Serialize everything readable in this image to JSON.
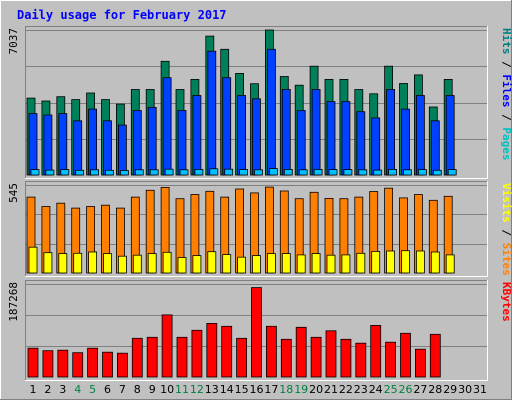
{
  "chart_data": [
    {
      "type": "bar",
      "title": "Daily usage for February 2017",
      "ylabel_parts": [
        "Pages",
        "Files",
        "Hits"
      ],
      "ylabel_colors": [
        "#00c0c0",
        "#0000ff",
        "#008080"
      ],
      "ymax_label": "7037",
      "ylim": [
        0,
        7037
      ],
      "categories": [
        "1",
        "2",
        "3",
        "4",
        "5",
        "6",
        "7",
        "8",
        "9",
        "10",
        "11",
        "12",
        "13",
        "14",
        "15",
        "16",
        "17",
        "18",
        "19",
        "20",
        "21",
        "22",
        "23",
        "24",
        "25",
        "26",
        "27",
        "28",
        "29",
        "30",
        "31"
      ],
      "series": [
        {
          "name": "Hits",
          "color": "#00805a",
          "values": [
            3730,
            3589,
            3800,
            3660,
            3980,
            3660,
            3440,
            4150,
            4150,
            5520,
            4150,
            4640,
            6740,
            6100,
            4930,
            4430,
            7037,
            4780,
            4360,
            5280,
            4640,
            4640,
            4150,
            3940,
            5280,
            4440,
            4860,
            3300,
            4640,
            null,
            null
          ]
        },
        {
          "name": "Files",
          "color": "#0040ff",
          "values": [
            2980,
            2910,
            2980,
            2630,
            3200,
            2630,
            2420,
            3130,
            3280,
            4720,
            3130,
            3860,
            6010,
            4720,
            3860,
            3700,
            6100,
            4150,
            3130,
            4150,
            3560,
            3560,
            3070,
            2770,
            4150,
            3200,
            3860,
            2630,
            3860,
            null,
            null
          ]
        },
        {
          "name": "Pages",
          "color": "#00c0ff",
          "values": [
            260,
            240,
            260,
            230,
            250,
            230,
            220,
            250,
            250,
            280,
            250,
            270,
            300,
            280,
            260,
            250,
            310,
            270,
            250,
            270,
            260,
            260,
            250,
            240,
            270,
            250,
            260,
            230,
            260,
            null,
            null
          ]
        }
      ]
    },
    {
      "type": "bar",
      "ylabel_parts": [
        "Sites",
        "Visits"
      ],
      "ylabel_colors": [
        "#ff8000",
        "#ffff00"
      ],
      "ymax_label": "545",
      "ylim": [
        0,
        545
      ],
      "categories": [
        "1",
        "2",
        "3",
        "4",
        "5",
        "6",
        "7",
        "8",
        "9",
        "10",
        "11",
        "12",
        "13",
        "14",
        "15",
        "16",
        "17",
        "18",
        "19",
        "20",
        "21",
        "22",
        "23",
        "24",
        "25",
        "26",
        "27",
        "28",
        "29",
        "30",
        "31"
      ],
      "series": [
        {
          "name": "Sites",
          "color": "#ff8000",
          "values": [
            470,
            412,
            432,
            402,
            412,
            420,
            402,
            470,
            512,
            530,
            460,
            486,
            506,
            470,
            520,
            496,
            532,
            508,
            460,
            500,
            462,
            460,
            470,
            505,
            525,
            465,
            486,
            450,
            475,
            null,
            null
          ]
        },
        {
          "name": "Visits",
          "color": "#ffff00",
          "values": [
            160,
            126,
            120,
            122,
            130,
            120,
            104,
            110,
            120,
            128,
            96,
            108,
            132,
            114,
            98,
            108,
            120,
            120,
            112,
            120,
            110,
            112,
            122,
            134,
            136,
            138,
            136,
            130,
            112,
            null,
            null
          ]
        }
      ]
    },
    {
      "type": "bar",
      "ylabel_parts": [
        "KBytes"
      ],
      "ylabel_colors": [
        "#ff0000"
      ],
      "ymax_label": "187268",
      "ylim": [
        0,
        187268
      ],
      "categories": [
        "1",
        "2",
        "3",
        "4",
        "5",
        "6",
        "7",
        "8",
        "9",
        "10",
        "11",
        "12",
        "13",
        "14",
        "15",
        "16",
        "17",
        "18",
        "19",
        "20",
        "21",
        "22",
        "23",
        "24",
        "25",
        "26",
        "27",
        "28",
        "29",
        "30",
        "31"
      ],
      "series": [
        {
          "name": "KBytes",
          "color": "#ff0000",
          "values": [
            58000,
            53000,
            54000,
            49000,
            58000,
            50000,
            48000,
            78000,
            80000,
            125000,
            80000,
            94000,
            108000,
            102000,
            78000,
            180000,
            102000,
            76000,
            100000,
            80000,
            93000,
            76000,
            68000,
            104000,
            70000,
            88000,
            56000,
            86000,
            null,
            null,
            null
          ]
        }
      ]
    }
  ],
  "day_labels": [
    "1",
    "2",
    "3",
    "4",
    "5",
    "6",
    "7",
    "8",
    "9",
    "10",
    "11",
    "12",
    "13",
    "14",
    "15",
    "16",
    "17",
    "18",
    "19",
    "20",
    "21",
    "22",
    "23",
    "24",
    "25",
    "26",
    "27",
    "28",
    "29",
    "30",
    "31"
  ],
  "weekend_days": [
    4,
    5,
    11,
    12,
    18,
    19,
    25,
    26
  ],
  "weekend_color": "#008040",
  "weekday_color": "#000000",
  "title_color": "#0000ff"
}
